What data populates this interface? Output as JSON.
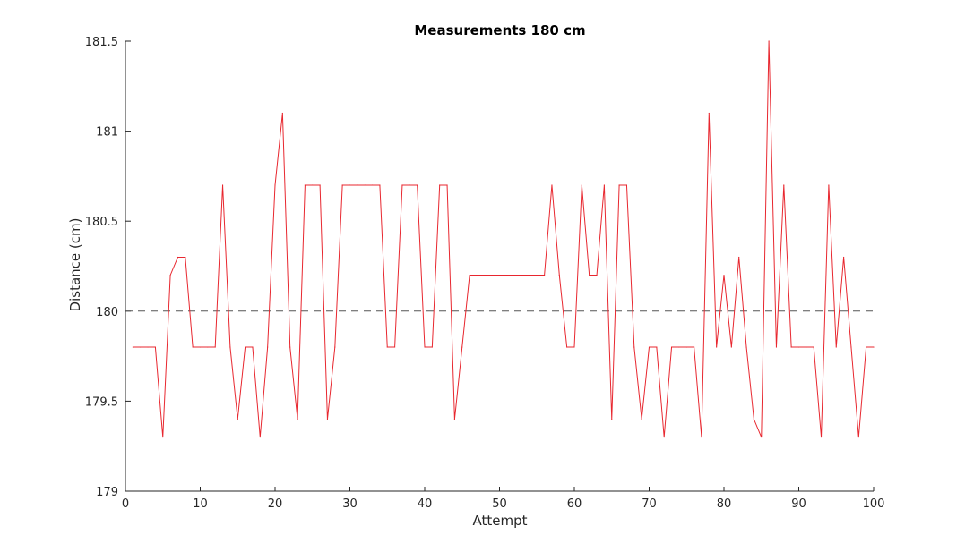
{
  "chart_data": {
    "type": "line",
    "title": "Measurements 180 cm",
    "xlabel": "Attempt",
    "ylabel": "Distance (cm)",
    "xlim": [
      0,
      100
    ],
    "ylim": [
      179,
      181.5
    ],
    "xticks": [
      0,
      10,
      20,
      30,
      40,
      50,
      60,
      70,
      80,
      90,
      100
    ],
    "yticks": [
      179,
      179.5,
      180,
      180.5,
      181,
      181.5
    ],
    "xtick_labels": [
      "0",
      "10",
      "20",
      "30",
      "40",
      "50",
      "60",
      "70",
      "80",
      "90",
      "100"
    ],
    "ytick_labels": [
      "179",
      "179.5",
      "180",
      "180.5",
      "181",
      "181.5"
    ],
    "grid": false,
    "reference_line": {
      "y": 180,
      "style": "dashed",
      "color": "#555555"
    },
    "series": [
      {
        "color": "#e8272f",
        "x": [
          1,
          2,
          3,
          4,
          5,
          6,
          7,
          8,
          9,
          10,
          11,
          12,
          13,
          14,
          15,
          16,
          17,
          18,
          19,
          20,
          21,
          22,
          23,
          24,
          25,
          26,
          27,
          28,
          29,
          30,
          31,
          32,
          33,
          34,
          35,
          36,
          37,
          38,
          39,
          40,
          41,
          42,
          43,
          44,
          45,
          46,
          47,
          48,
          49,
          50,
          51,
          52,
          53,
          54,
          55,
          56,
          57,
          58,
          59,
          60,
          61,
          62,
          63,
          64,
          65,
          66,
          67,
          68,
          69,
          70,
          71,
          72,
          73,
          74,
          75,
          76,
          77,
          78,
          79,
          80,
          81,
          82,
          83,
          84,
          85,
          86,
          87,
          88,
          89,
          90,
          91,
          92,
          93,
          94,
          95,
          96,
          97,
          98,
          99,
          100
        ],
        "values": [
          179.8,
          179.8,
          179.8,
          179.8,
          179.3,
          180.2,
          180.3,
          180.3,
          179.8,
          179.8,
          179.8,
          179.8,
          180.7,
          179.8,
          179.4,
          179.8,
          179.8,
          179.3,
          179.8,
          180.7,
          181.1,
          179.8,
          179.4,
          180.7,
          180.7,
          180.7,
          179.4,
          179.8,
          180.7,
          180.7,
          180.7,
          180.7,
          180.7,
          180.7,
          179.8,
          179.8,
          180.7,
          180.7,
          180.7,
          179.8,
          179.8,
          180.7,
          180.7,
          179.4,
          179.8,
          180.2,
          180.2,
          180.2,
          180.2,
          180.2,
          180.2,
          180.2,
          180.2,
          180.2,
          180.2,
          180.2,
          180.7,
          180.2,
          179.8,
          179.8,
          180.7,
          180.2,
          180.2,
          180.7,
          179.4,
          180.7,
          180.7,
          179.8,
          179.4,
          179.8,
          179.8,
          179.3,
          179.8,
          179.8,
          179.8,
          179.8,
          179.3,
          181.1,
          179.8,
          180.2,
          179.8,
          180.3,
          179.8,
          179.4,
          179.3,
          181.5,
          179.8,
          180.7,
          179.8,
          179.8,
          179.8,
          179.8,
          179.3,
          180.7,
          179.8,
          180.3,
          179.8,
          179.3,
          179.8,
          179.8
        ]
      }
    ]
  }
}
